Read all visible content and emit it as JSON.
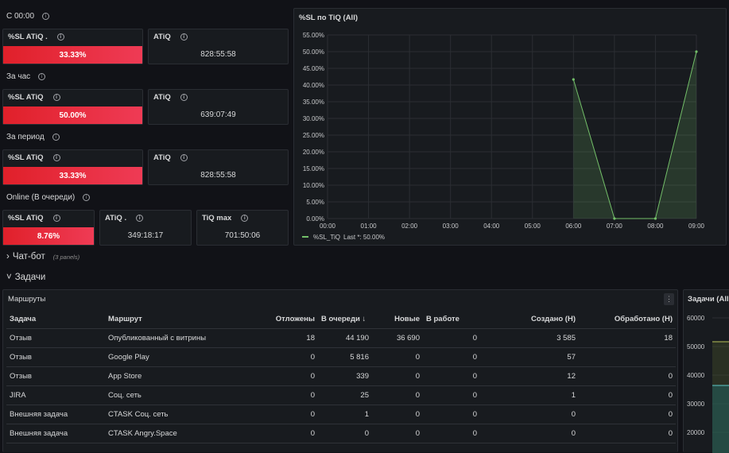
{
  "sections": {
    "since_midnight": "С 00:00",
    "per_hour": "За час",
    "per_period": "За период",
    "online_queue": "Online (В очереди)"
  },
  "stats": {
    "s1_sl_title": "%SL ATiQ .",
    "s1_sl_value": "33.33%",
    "s1_atiq_title": "ATiQ",
    "s1_atiq_value": "828:55:58",
    "s2_sl_title": "%SL ATiQ",
    "s2_sl_value": "50.00%",
    "s2_atiq_title": "ATiQ",
    "s2_atiq_value": "639:07:49",
    "s3_sl_title": "%SL ATiQ",
    "s3_sl_value": "33.33%",
    "s3_atiq_title": "ATiQ",
    "s3_atiq_value": "828:55:58",
    "s4_sl_title": "%SL ATiQ",
    "s4_sl_value": "8.76%",
    "s4_atiq_title": "ATiQ .",
    "s4_atiq_value": "349:18:17",
    "s4_tiq_title": "TiQ max",
    "s4_tiq_value": "701:50:06"
  },
  "colors": {
    "red_start": "#e0202a",
    "red_end": "#ef3b55",
    "series_green": "#73bf69"
  },
  "chart_panel_title": "%SL по TiQ (All)",
  "chart_data": {
    "type": "area",
    "x": [
      "00:00",
      "01:00",
      "02:00",
      "03:00",
      "04:00",
      "05:00",
      "06:00",
      "07:00",
      "08:00",
      "09:00"
    ],
    "y_ticks": [
      "0.00%",
      "5.00%",
      "10.00%",
      "15.00%",
      "20.00%",
      "25.00%",
      "30.00%",
      "35.00%",
      "40.00%",
      "45.00%",
      "50.00%",
      "55.00%"
    ],
    "ylim": [
      0,
      55
    ],
    "series": [
      {
        "name": "%SL_TiQ",
        "points": [
          [
            "06:00",
            41.67
          ],
          [
            "07:00",
            0
          ],
          [
            "08:00",
            0
          ],
          [
            "09:00",
            50
          ]
        ]
      }
    ],
    "legend_label": "%SL_TiQ",
    "legend_last": "Last *: 50.00%",
    "grid": true,
    "legend": "bottom-left"
  },
  "chatbot_row": {
    "title": "Чат-бот",
    "sub": "(3 panels)"
  },
  "tasks_row": {
    "title": "Задачи"
  },
  "routes_table": {
    "title": "Маршруты",
    "menu_icon": "⋮",
    "headers": [
      "Задача",
      "Маршрут",
      "Отложены",
      "В очереди ↓",
      "Новые",
      "В работе",
      "Создано (Н)",
      "Обработано (Н)"
    ],
    "rows": [
      [
        "Отзыв",
        "Опубликованный с витрины",
        "18",
        "44 190",
        "36 690",
        "0",
        "3 585",
        "18"
      ],
      [
        "Отзыв",
        "Google Play",
        "0",
        "5 816",
        "0",
        "0",
        "57",
        ""
      ],
      [
        "Отзыв",
        "App Store",
        "0",
        "339",
        "0",
        "0",
        "12",
        "0"
      ],
      [
        "JIRA",
        "Соц. сеть",
        "0",
        "25",
        "0",
        "0",
        "1",
        "0"
      ],
      [
        "Внешняя задача",
        "CTASK Соц. сеть",
        "0",
        "1",
        "0",
        "0",
        "0",
        "0"
      ],
      [
        "Внешняя задача",
        "CTASK Angry.Space",
        "0",
        "0",
        "0",
        "0",
        "0",
        "0"
      ]
    ]
  },
  "tasks_chart": {
    "title": "Задачи (All",
    "y_ticks": [
      "60000",
      "50000",
      "40000",
      "30000",
      "20000"
    ]
  }
}
